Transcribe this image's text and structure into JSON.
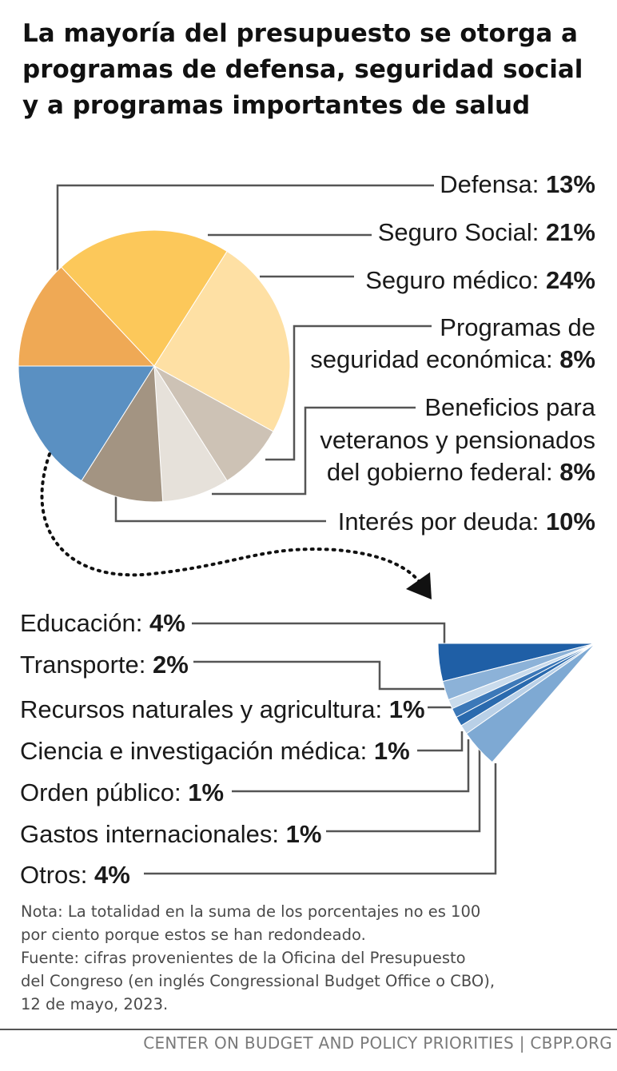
{
  "title_lines": [
    "La mayoría del presupuesto se otorga a",
    "programas de defensa, seguridad social",
    "y a programas importantes de salud"
  ],
  "chart_data": [
    {
      "type": "pie",
      "slices": [
        {
          "label_lines": [
            "Defensa:"
          ],
          "value": 13,
          "value_label": "13%",
          "color": "#EFA955"
        },
        {
          "label_lines": [
            "Seguro Social:"
          ],
          "value": 21,
          "value_label": "21%",
          "color": "#FCC85A"
        },
        {
          "label_lines": [
            "Seguro médico:"
          ],
          "value": 24,
          "value_label": "24%",
          "color": "#FEE0A4"
        },
        {
          "label_lines": [
            "Programas de",
            "seguridad económica:"
          ],
          "value": 8,
          "value_label": "8%",
          "color": "#CDC2B5"
        },
        {
          "label_lines": [
            "Beneficios para",
            "veteranos y pensionados",
            "del gobierno federal:"
          ],
          "value": 8,
          "value_label": "8%",
          "color": "#E6E1DA"
        },
        {
          "label_lines": [
            "Interés por deuda:"
          ],
          "value": 10,
          "value_label": "10%",
          "color": "#A39482"
        },
        {
          "label_lines": [],
          "value": 16,
          "value_label": "",
          "color": "#5A90C2"
        }
      ]
    },
    {
      "type": "pie",
      "slices": [
        {
          "label": "Educación:",
          "value": 4,
          "value_label": "4%",
          "color": "#1F5FA6"
        },
        {
          "label": "Transporte:",
          "value": 2,
          "value_label": "2%",
          "color": "#8CB2D8"
        },
        {
          "label": "Recursos naturales y agricultura:",
          "value": 1,
          "value_label": "1%",
          "color": "#C9DBEC"
        },
        {
          "label": "Ciencia e investigación médica:",
          "value": 1,
          "value_label": "1%",
          "color": "#3C78B8"
        },
        {
          "label": "Orden público:",
          "value": 1,
          "value_label": "1%",
          "color": "#2A6AAE"
        },
        {
          "label": "Gastos internacionales:",
          "value": 1,
          "value_label": "1%",
          "color": "#B9D0E7"
        },
        {
          "label": "Otros:",
          "value": 4,
          "value_label": "4%",
          "color": "#7EA9D3"
        }
      ]
    }
  ],
  "note_lines": [
    "Nota: La totalidad en la suma de los porcentajes no es 100",
    "por ciento porque estos se han redondeado.",
    "Fuente: cifras provenientes de la Oficina del Presupuesto",
    "del Congreso (en inglés Congressional Budget Office o CBO),",
    "12 de mayo, 2023."
  ],
  "footer": "CENTER ON BUDGET AND POLICY PRIORITIES | CBPP.ORG"
}
